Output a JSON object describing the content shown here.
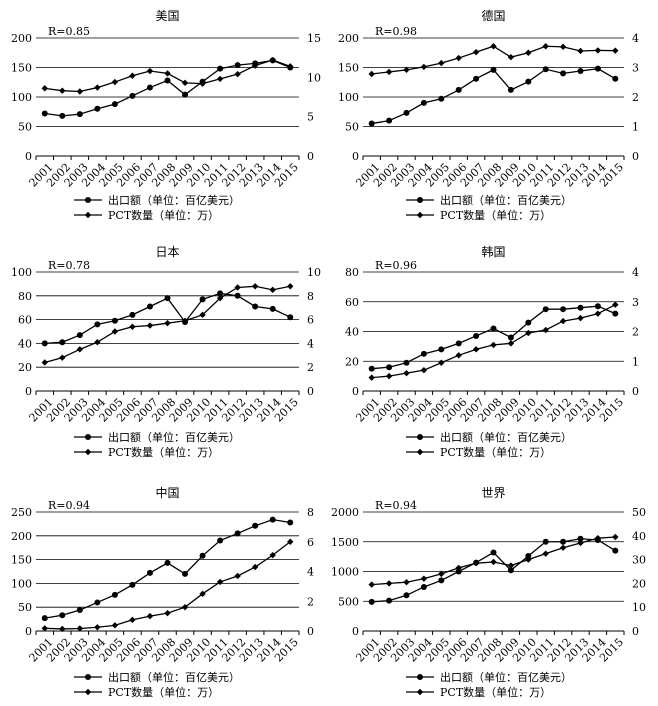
{
  "chart_data": [
    {
      "type": "line",
      "title": "美国",
      "annotation": "R=0.85",
      "categories": [
        "2001",
        "2002",
        "2003",
        "2004",
        "2005",
        "2006",
        "2007",
        "2008",
        "2009",
        "2010",
        "2011",
        "2012",
        "2013",
        "2014",
        "2015"
      ],
      "y_left": {
        "lim": [
          0,
          200
        ],
        "ticks": [
          0,
          50,
          100,
          150,
          200
        ]
      },
      "y_right": {
        "lim": [
          0,
          15
        ],
        "ticks": [
          0,
          5,
          10,
          15
        ]
      },
      "grid": true,
      "series": [
        {
          "name": "出口额（单位：百亿美元）",
          "axis": "left",
          "marker": "circle",
          "values": [
            72,
            68,
            71,
            80,
            88,
            102,
            116,
            128,
            104,
            126,
            148,
            154,
            157,
            162,
            150
          ]
        },
        {
          "name": "PCT数量（单位：万）",
          "axis": "right",
          "marker": "diamond",
          "values": [
            8.6,
            8.3,
            8.2,
            8.7,
            9.4,
            10.2,
            10.8,
            10.5,
            9.3,
            9.2,
            9.8,
            10.4,
            11.5,
            12.2,
            11.4
          ]
        }
      ]
    },
    {
      "type": "line",
      "title": "德国",
      "annotation": "R=0.98",
      "categories": [
        "2001",
        "2002",
        "2003",
        "2004",
        "2005",
        "2006",
        "2007",
        "2008",
        "2009",
        "2010",
        "2011",
        "2012",
        "2013",
        "2014",
        "2015"
      ],
      "y_left": {
        "lim": [
          0,
          200
        ],
        "ticks": [
          0,
          50,
          100,
          150,
          200
        ]
      },
      "y_right": {
        "lim": [
          0,
          4
        ],
        "ticks": [
          0,
          1,
          2,
          3,
          4
        ]
      },
      "grid": true,
      "series": [
        {
          "name": "出口额（单位：百亿美元）",
          "axis": "left",
          "marker": "circle",
          "values": [
            55,
            60,
            73,
            90,
            97,
            112,
            131,
            146,
            112,
            126,
            147,
            140,
            144,
            148,
            131
          ]
        },
        {
          "name": "PCT数量（单位：万）",
          "axis": "right",
          "marker": "diamond",
          "values": [
            2.78,
            2.85,
            2.92,
            3.02,
            3.15,
            3.32,
            3.52,
            3.72,
            3.35,
            3.5,
            3.72,
            3.7,
            3.56,
            3.58,
            3.57
          ]
        }
      ]
    },
    {
      "type": "line",
      "title": "日本",
      "annotation": "R=0.78",
      "categories": [
        "2001",
        "2002",
        "2003",
        "2004",
        "2005",
        "2006",
        "2007",
        "2008",
        "2009",
        "2010",
        "2011",
        "2012",
        "2013",
        "2014",
        "2015"
      ],
      "y_left": {
        "lim": [
          0,
          100
        ],
        "ticks": [
          0,
          20,
          40,
          60,
          80,
          100
        ]
      },
      "y_right": {
        "lim": [
          0,
          10
        ],
        "ticks": [
          0,
          2,
          4,
          6,
          8,
          10
        ]
      },
      "grid": true,
      "series": [
        {
          "name": "出口额（单位：百亿美元）",
          "axis": "left",
          "marker": "circle",
          "values": [
            40,
            41,
            47,
            56,
            59,
            64,
            71,
            78,
            58,
            77,
            82,
            80,
            71,
            69,
            62
          ]
        },
        {
          "name": "PCT数量（单位：万）",
          "axis": "right",
          "marker": "diamond",
          "values": [
            2.4,
            2.8,
            3.5,
            4.1,
            5.0,
            5.4,
            5.5,
            5.7,
            5.9,
            6.4,
            7.8,
            8.7,
            8.8,
            8.5,
            8.8
          ]
        }
      ]
    },
    {
      "type": "line",
      "title": "韩国",
      "annotation": "R=0.96",
      "categories": [
        "2001",
        "2002",
        "2003",
        "2004",
        "2005",
        "2006",
        "2007",
        "2008",
        "2009",
        "2010",
        "2011",
        "2012",
        "2013",
        "2014",
        "2015"
      ],
      "y_left": {
        "lim": [
          0,
          80
        ],
        "ticks": [
          0,
          20,
          40,
          60,
          80
        ]
      },
      "y_right": {
        "lim": [
          0,
          4
        ],
        "ticks": [
          0,
          1,
          2,
          3,
          4
        ]
      },
      "grid": true,
      "series": [
        {
          "name": "出口额（单位：百亿美元）",
          "axis": "left",
          "marker": "circle",
          "values": [
            15,
            16,
            19,
            25,
            28,
            32,
            37,
            42,
            36,
            46,
            55,
            55,
            56,
            57,
            52
          ]
        },
        {
          "name": "PCT数量（单位：万）",
          "axis": "right",
          "marker": "diamond",
          "values": [
            0.45,
            0.5,
            0.6,
            0.7,
            0.95,
            1.2,
            1.4,
            1.55,
            1.6,
            1.95,
            2.05,
            2.35,
            2.45,
            2.6,
            2.9
          ]
        }
      ]
    },
    {
      "type": "line",
      "title": "中国",
      "annotation": "R=0.94",
      "categories": [
        "2001",
        "2002",
        "2003",
        "2004",
        "2005",
        "2006",
        "2007",
        "2008",
        "2009",
        "2010",
        "2011",
        "2012",
        "2013",
        "2014",
        "2015"
      ],
      "y_left": {
        "lim": [
          0,
          250
        ],
        "ticks": [
          0,
          50,
          100,
          150,
          200,
          250
        ]
      },
      "y_right": {
        "lim": [
          0,
          8
        ],
        "ticks": [
          0,
          2,
          4,
          6,
          8
        ]
      },
      "grid": true,
      "series": [
        {
          "name": "出口额（单位：百亿美元）",
          "axis": "left",
          "marker": "circle",
          "values": [
            27,
            33,
            44,
            60,
            76,
            97,
            122,
            143,
            120,
            158,
            190,
            205,
            221,
            234,
            228
          ]
        },
        {
          "name": "PCT数量（单位：万）",
          "axis": "right",
          "marker": "diamond",
          "values": [
            0.18,
            0.14,
            0.17,
            0.25,
            0.38,
            0.75,
            1.0,
            1.2,
            1.6,
            2.5,
            3.3,
            3.7,
            4.3,
            5.1,
            6.0
          ]
        }
      ]
    },
    {
      "type": "line",
      "title": "世界",
      "annotation": "R=0.94",
      "categories": [
        "2001",
        "2002",
        "2003",
        "2004",
        "2005",
        "2006",
        "2007",
        "2008",
        "2009",
        "2010",
        "2011",
        "2012",
        "2013",
        "2014",
        "2015"
      ],
      "y_left": {
        "lim": [
          0,
          2000
        ],
        "ticks": [
          0,
          500,
          1000,
          1500,
          2000
        ]
      },
      "y_right": {
        "lim": [
          0,
          50
        ],
        "ticks": [
          0,
          10,
          20,
          30,
          40,
          50
        ]
      },
      "grid": true,
      "series": [
        {
          "name": "出口额（单位：百亿美元）",
          "axis": "left",
          "marker": "circle",
          "values": [
            490,
            510,
            600,
            740,
            850,
            1000,
            1150,
            1320,
            1020,
            1260,
            1500,
            1500,
            1550,
            1530,
            1350
          ]
        },
        {
          "name": "PCT数量（单位：万）",
          "axis": "right",
          "marker": "diamond",
          "values": [
            19.5,
            20,
            20.5,
            22,
            24,
            26.5,
            28.5,
            29,
            27.5,
            30,
            32.5,
            35,
            37,
            39,
            39.5
          ]
        }
      ]
    }
  ]
}
